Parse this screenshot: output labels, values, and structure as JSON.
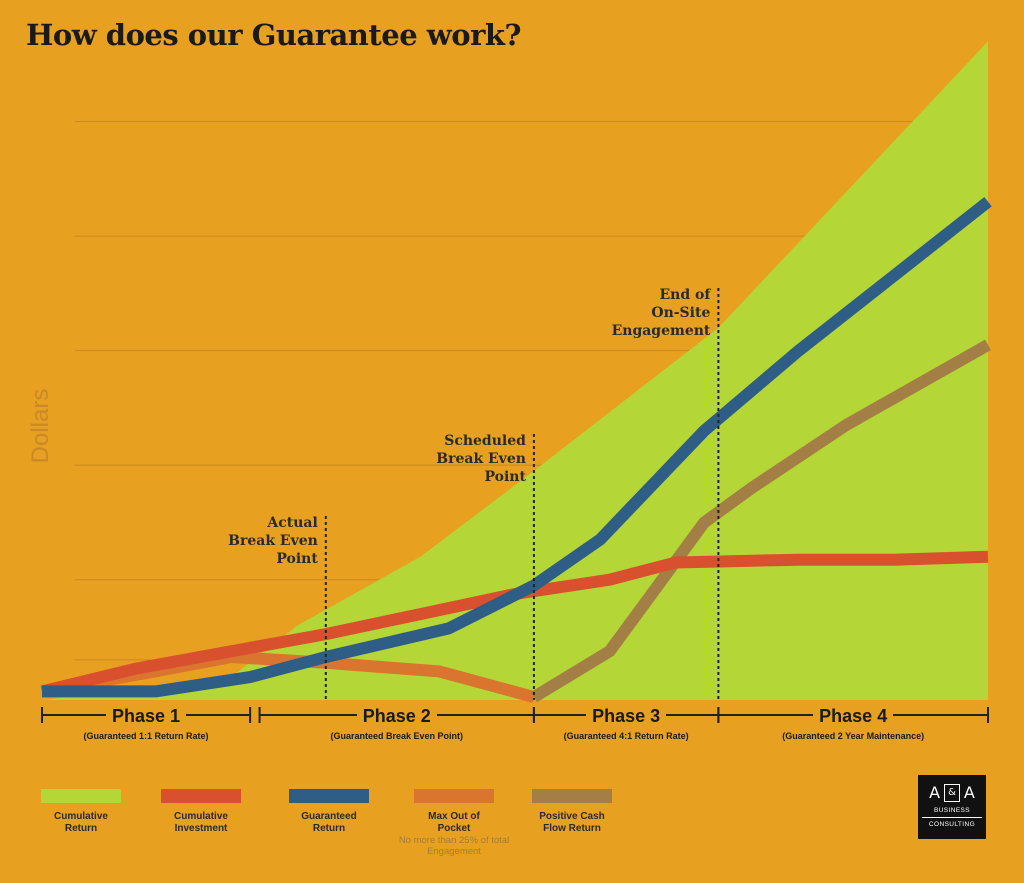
{
  "title": "How does our Guarantee work?",
  "colors": {
    "background": "#E8A020",
    "cumulative_return": "#B5D637",
    "cumulative_investment": "#D9502E",
    "guaranteed_return": "#2E5E86",
    "max_out_of_pocket": "#D9752E",
    "positive_cash_flow": "#A37F45",
    "grid": "#C98A1E"
  },
  "chart_data": {
    "type": "area",
    "ylabel": "Dollars",
    "xlabel": "",
    "x": [
      0,
      1,
      2,
      3,
      4,
      5,
      6,
      7,
      8,
      9,
      10
    ],
    "xlim": [
      0,
      10
    ],
    "ylim": [
      0,
      11
    ],
    "grid": true,
    "gridlines_y": [
      0.7,
      2.1,
      4.1,
      6.1,
      8.1,
      10.1
    ],
    "series": [
      {
        "name": "Cumulative Return",
        "type": "area",
        "color": "#B5D637",
        "x": [
          0,
          2,
          2.7,
          4,
          5.2,
          7.15,
          10
        ],
        "values": [
          0,
          0.4,
          1.3,
          2.5,
          4,
          6.5,
          11.5
        ]
      },
      {
        "name": "Cumulative Investment",
        "type": "line",
        "color": "#D9502E",
        "x": [
          0,
          1,
          2,
          3,
          4,
          5,
          6,
          6.7,
          8,
          9,
          10
        ],
        "values": [
          0.15,
          0.55,
          0.85,
          1.15,
          1.5,
          1.85,
          2.1,
          2.4,
          2.45,
          2.45,
          2.5
        ]
      },
      {
        "name": "Guaranteed Return",
        "type": "line",
        "color": "#2E5E86",
        "x": [
          0,
          1.2,
          2.2,
          3,
          4.3,
          5.2,
          5.9,
          7,
          8,
          9,
          10
        ],
        "values": [
          0.15,
          0.15,
          0.4,
          0.75,
          1.25,
          2,
          2.8,
          4.7,
          6.1,
          7.4,
          8.7
        ]
      },
      {
        "name": "Max Out of Pocket",
        "type": "line",
        "color": "#D9752E",
        "x": [
          0,
          1.2,
          2,
          3,
          4.2,
          5.2
        ],
        "values": [
          0.15,
          0.5,
          0.75,
          0.65,
          0.5,
          0.05
        ]
      },
      {
        "name": "Positive Cash Flow Return",
        "type": "line",
        "color": "#A37F45",
        "x": [
          5.2,
          6,
          7,
          7.5,
          8.5,
          10
        ],
        "values": [
          0.05,
          0.85,
          3.1,
          3.7,
          4.8,
          6.2
        ]
      }
    ],
    "annotations": [
      {
        "lines": [
          "Actual",
          "Break Even",
          "Point"
        ],
        "x": 3
      },
      {
        "lines": [
          "Scheduled",
          "Break Even",
          "Point"
        ],
        "x": 5.2
      },
      {
        "lines": [
          "End of",
          "On-Site",
          "Engagement"
        ],
        "x": 7.15
      }
    ],
    "phases": [
      {
        "name": "Phase 1",
        "subtitle": "(Guaranteed 1:1 Return Rate)",
        "start": 0,
        "end": 2.2
      },
      {
        "name": "Phase 2",
        "subtitle": "(Guaranteed Break Even Point)",
        "start": 2.3,
        "end": 5.2
      },
      {
        "name": "Phase 3",
        "subtitle": "(Guaranteed 4:1 Return Rate)",
        "start": 5.2,
        "end": 7.15
      },
      {
        "name": "Phase 4",
        "subtitle": "(Guaranteed 2 Year Maintenance)",
        "start": 7.15,
        "end": 10
      }
    ]
  },
  "legend": [
    {
      "label": "Cumulative Return",
      "color": "#B5D637"
    },
    {
      "label": "Cumulative Investment",
      "color": "#D9502E"
    },
    {
      "label": "Guaranteed Return",
      "color": "#2E5E86"
    },
    {
      "label": "Max Out of Pocket",
      "color": "#D9752E",
      "note": "No more than 25% of total Engagement"
    },
    {
      "label": "Positive Cash Flow Return",
      "color": "#A37F45"
    }
  ],
  "logo": {
    "left": "A",
    "amp": "&",
    "right": "A",
    "line1": "BUSINESS",
    "line2": "CONSULTING"
  }
}
